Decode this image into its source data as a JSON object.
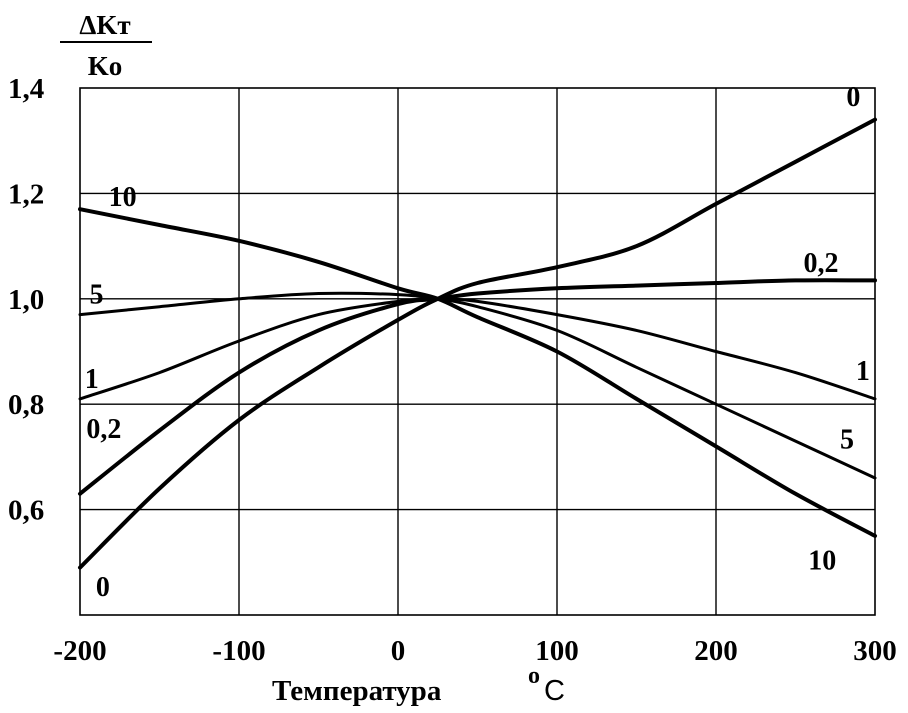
{
  "chart_data": {
    "type": "line",
    "title": "",
    "ylabel": {
      "numerator": "ΔKт",
      "denominator": "Ko"
    },
    "xlabel": "Температура",
    "xunit": {
      "degree": "o",
      "letter": "C"
    },
    "xlim": [
      -200,
      300
    ],
    "ylim": [
      0.4,
      1.4
    ],
    "xticks": [
      -200,
      -100,
      0,
      100,
      200,
      300
    ],
    "xtick_labels": [
      "-200",
      "-100",
      "0",
      "100",
      "200",
      "300"
    ],
    "yticks": [
      0.6,
      0.8,
      1.0,
      1.2,
      1.4
    ],
    "ytick_labels": [
      "0,6",
      "0,8",
      "1,0",
      "1,2",
      "1,4"
    ],
    "grid": true,
    "series": [
      {
        "name": "0",
        "x": [
          -200,
          -150,
          -100,
          -50,
          0,
          25,
          50,
          100,
          150,
          200,
          250,
          300
        ],
        "y": [
          0.49,
          0.64,
          0.77,
          0.87,
          0.96,
          1.0,
          1.03,
          1.06,
          1.1,
          1.18,
          1.26,
          1.34
        ]
      },
      {
        "name": "0,2",
        "x": [
          -200,
          -150,
          -100,
          -50,
          0,
          25,
          50,
          100,
          150,
          200,
          250,
          300
        ],
        "y": [
          0.63,
          0.75,
          0.86,
          0.94,
          0.99,
          1.0,
          1.01,
          1.02,
          1.025,
          1.03,
          1.035,
          1.035
        ]
      },
      {
        "name": "1",
        "x": [
          -200,
          -150,
          -100,
          -50,
          0,
          25,
          50,
          100,
          150,
          200,
          250,
          300
        ],
        "y": [
          0.81,
          0.86,
          0.92,
          0.97,
          0.995,
          1.0,
          0.995,
          0.97,
          0.94,
          0.9,
          0.86,
          0.81
        ]
      },
      {
        "name": "5",
        "x": [
          -200,
          -150,
          -100,
          -50,
          0,
          25,
          50,
          100,
          150,
          200,
          250,
          300
        ],
        "y": [
          0.97,
          0.985,
          1.0,
          1.01,
          1.008,
          1.0,
          0.985,
          0.94,
          0.87,
          0.8,
          0.73,
          0.66
        ]
      },
      {
        "name": "10",
        "x": [
          -200,
          -150,
          -100,
          -50,
          0,
          25,
          50,
          100,
          150,
          200,
          250,
          300
        ],
        "y": [
          1.17,
          1.14,
          1.11,
          1.07,
          1.02,
          1.0,
          0.965,
          0.9,
          0.81,
          0.72,
          0.63,
          0.55
        ]
      }
    ],
    "series_labels": [
      {
        "text": "0",
        "x": 282,
        "y": 1.385
      },
      {
        "text": "0,2",
        "x": 255,
        "y": 1.07
      },
      {
        "text": "1",
        "x": 288,
        "y": 0.865
      },
      {
        "text": "5",
        "x": 278,
        "y": 0.735
      },
      {
        "text": "10",
        "x": 258,
        "y": 0.505
      },
      {
        "text": "10",
        "x": -182,
        "y": 1.195
      },
      {
        "text": "5",
        "x": -194,
        "y": 1.01
      },
      {
        "text": "1",
        "x": -197,
        "y": 0.85
      },
      {
        "text": "0,2",
        "x": -196,
        "y": 0.755
      },
      {
        "text": "0",
        "x": -190,
        "y": 0.455
      }
    ]
  }
}
